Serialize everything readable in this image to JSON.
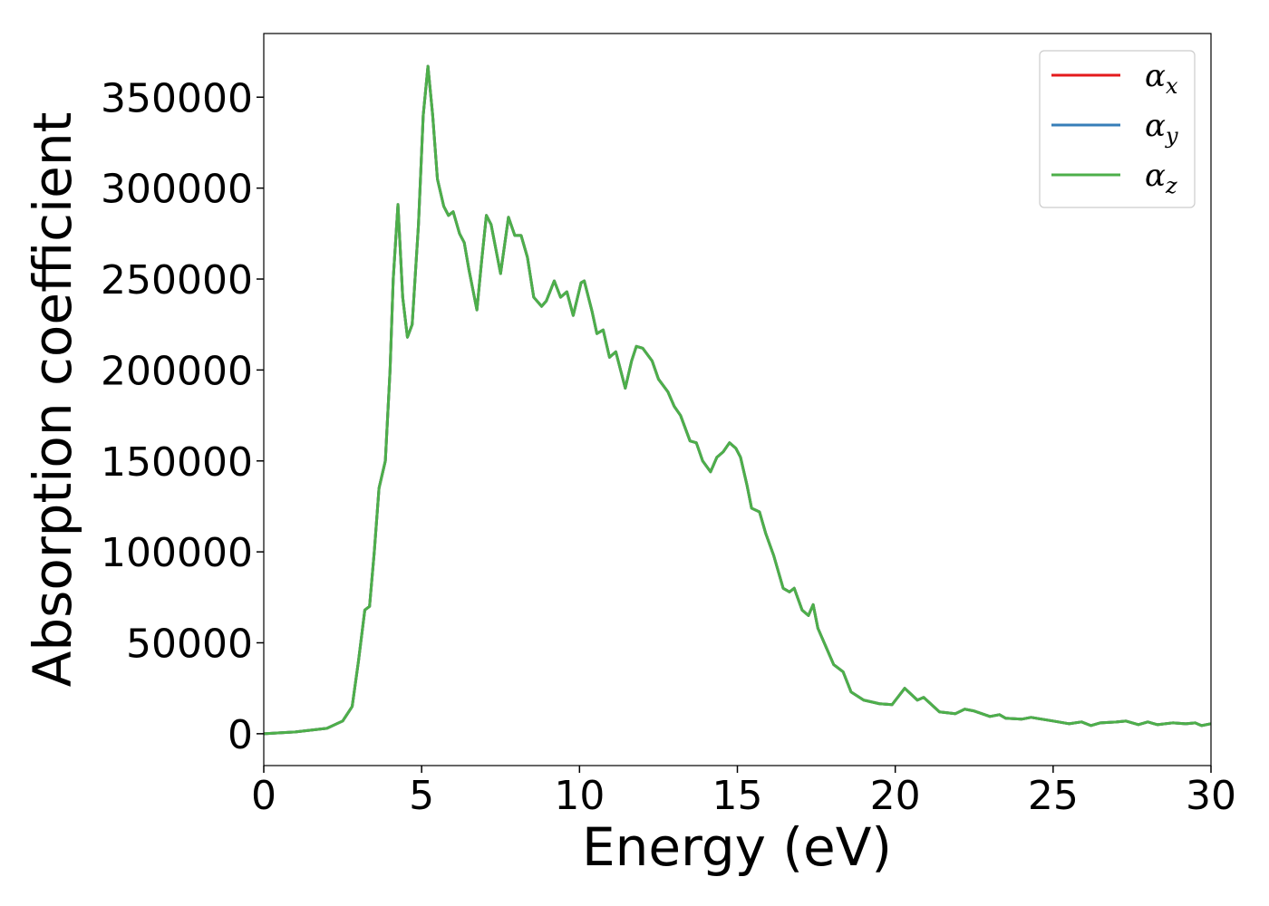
{
  "chart_data": {
    "type": "line",
    "xlabel": "Energy (eV)",
    "ylabel": "Absorption coefficient",
    "xlim": [
      0,
      30
    ],
    "ylim": [
      -17500,
      385000
    ],
    "xticks": [
      0,
      5,
      10,
      15,
      20,
      25,
      30
    ],
    "yticks": [
      0,
      50000,
      100000,
      150000,
      200000,
      250000,
      300000,
      350000
    ],
    "grid": false,
    "legend": "upper right",
    "x": [
      0,
      1,
      2,
      2.5,
      2.8,
      3.0,
      3.2,
      3.35,
      3.5,
      3.65,
      3.85,
      4.0,
      4.1,
      4.25,
      4.4,
      4.55,
      4.7,
      4.9,
      5.05,
      5.2,
      5.35,
      5.5,
      5.7,
      5.85,
      6.0,
      6.2,
      6.35,
      6.5,
      6.75,
      6.9,
      7.05,
      7.2,
      7.5,
      7.75,
      7.95,
      8.15,
      8.35,
      8.55,
      8.8,
      8.95,
      9.2,
      9.4,
      9.6,
      9.8,
      10.05,
      10.15,
      10.4,
      10.55,
      10.75,
      10.95,
      11.15,
      11.45,
      11.65,
      11.8,
      12.0,
      12.3,
      12.5,
      12.8,
      13.0,
      13.2,
      13.5,
      13.7,
      13.9,
      14.15,
      14.35,
      14.55,
      14.75,
      14.95,
      15.1,
      15.3,
      15.45,
      15.7,
      15.9,
      16.15,
      16.45,
      16.65,
      16.8,
      17.05,
      17.25,
      17.4,
      17.55,
      17.8,
      18.05,
      18.35,
      18.6,
      19.0,
      19.5,
      19.9,
      20.3,
      20.7,
      20.9,
      21.4,
      21.9,
      22.2,
      22.5,
      23.0,
      23.3,
      23.5,
      24.0,
      24.3,
      25.0,
      25.5,
      25.9,
      26.2,
      26.5,
      27.0,
      27.3,
      27.7,
      28.0,
      28.3,
      28.8,
      29.2,
      29.5,
      29.7,
      30
    ],
    "series": [
      {
        "name": "αx",
        "color": "#e41a1c",
        "values": [
          0,
          1000,
          3000,
          7000,
          15000,
          40000,
          68000,
          70000,
          100000,
          135000,
          150000,
          200000,
          250000,
          291000,
          240000,
          218000,
          225000,
          280000,
          340000,
          367000,
          340000,
          305000,
          290000,
          285000,
          287000,
          275000,
          270000,
          255000,
          233000,
          260000,
          285000,
          280000,
          253000,
          284000,
          274000,
          274000,
          262000,
          240000,
          235000,
          238000,
          249000,
          240000,
          243000,
          230000,
          248000,
          249000,
          232000,
          220000,
          222000,
          207000,
          210000,
          190000,
          205000,
          213000,
          212000,
          205000,
          195000,
          188000,
          180000,
          175000,
          161000,
          160000,
          150000,
          144000,
          152000,
          155000,
          160000,
          157000,
          152000,
          137000,
          124000,
          122000,
          110000,
          98000,
          80000,
          78000,
          80000,
          68000,
          65000,
          71000,
          58000,
          48000,
          38000,
          34000,
          23000,
          18500,
          16500,
          16000,
          25000,
          18500,
          20000,
          12000,
          11000,
          13500,
          12500,
          9500,
          10500,
          8500,
          8000,
          9000,
          7000,
          5500,
          6500,
          4500,
          6000,
          6500,
          7000,
          5000,
          6500,
          5000,
          6000,
          5500,
          6000,
          4500,
          5500
        ]
      },
      {
        "name": "αy",
        "color": "#377eb8",
        "values": [
          0,
          1000,
          3000,
          7000,
          15000,
          40000,
          68000,
          70000,
          100000,
          135000,
          150000,
          200000,
          250000,
          291000,
          240000,
          218000,
          225000,
          280000,
          340000,
          367000,
          340000,
          305000,
          290000,
          285000,
          287000,
          275000,
          270000,
          255000,
          233000,
          260000,
          285000,
          280000,
          253000,
          284000,
          274000,
          274000,
          262000,
          240000,
          235000,
          238000,
          249000,
          240000,
          243000,
          230000,
          248000,
          249000,
          232000,
          220000,
          222000,
          207000,
          210000,
          190000,
          205000,
          213000,
          212000,
          205000,
          195000,
          188000,
          180000,
          175000,
          161000,
          160000,
          150000,
          144000,
          152000,
          155000,
          160000,
          157000,
          152000,
          137000,
          124000,
          122000,
          110000,
          98000,
          80000,
          78000,
          80000,
          68000,
          65000,
          71000,
          58000,
          48000,
          38000,
          34000,
          23000,
          18500,
          16500,
          16000,
          25000,
          18500,
          20000,
          12000,
          11000,
          13500,
          12500,
          9500,
          10500,
          8500,
          8000,
          9000,
          7000,
          5500,
          6500,
          4500,
          6000,
          6500,
          7000,
          5000,
          6500,
          5000,
          6000,
          5500,
          6000,
          4500,
          5500
        ]
      },
      {
        "name": "αz",
        "color": "#4daf4a",
        "values": [
          0,
          1000,
          3000,
          7000,
          15000,
          40000,
          68000,
          70000,
          100000,
          135000,
          150000,
          200000,
          250000,
          291000,
          240000,
          218000,
          225000,
          280000,
          340000,
          367000,
          340000,
          305000,
          290000,
          285000,
          287000,
          275000,
          270000,
          255000,
          233000,
          260000,
          285000,
          280000,
          253000,
          284000,
          274000,
          274000,
          262000,
          240000,
          235000,
          238000,
          249000,
          240000,
          243000,
          230000,
          248000,
          249000,
          232000,
          220000,
          222000,
          207000,
          210000,
          190000,
          205000,
          213000,
          212000,
          205000,
          195000,
          188000,
          180000,
          175000,
          161000,
          160000,
          150000,
          144000,
          152000,
          155000,
          160000,
          157000,
          152000,
          137000,
          124000,
          122000,
          110000,
          98000,
          80000,
          78000,
          80000,
          68000,
          65000,
          71000,
          58000,
          48000,
          38000,
          34000,
          23000,
          18500,
          16500,
          16000,
          25000,
          18500,
          20000,
          12000,
          11000,
          13500,
          12500,
          9500,
          10500,
          8500,
          8000,
          9000,
          7000,
          5500,
          6500,
          4500,
          6000,
          6500,
          7000,
          5000,
          6500,
          5000,
          6000,
          5500,
          6000,
          4500,
          5500
        ]
      }
    ]
  }
}
